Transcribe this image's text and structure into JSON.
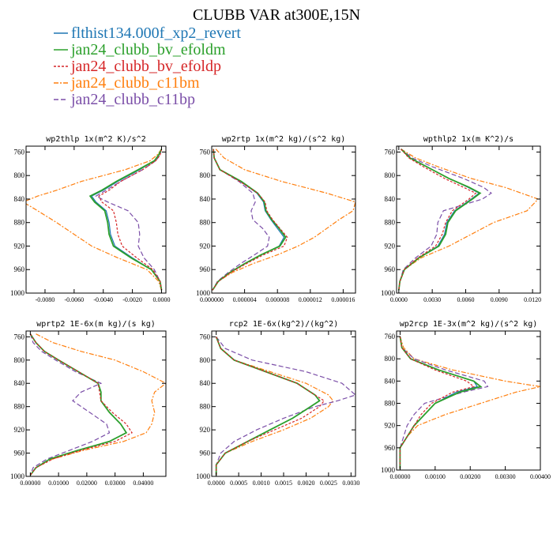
{
  "figure_title": "CLUBB VAR at300E,15N",
  "legend": [
    {
      "label": "flthist134.000f_xp2_revert",
      "color": "#1f77b4",
      "dash": ""
    },
    {
      "label": "jan24_clubb_bv_efoldm",
      "color": "#2ca02c",
      "dash": ""
    },
    {
      "label": "jan24_clubb_bv_efoldp",
      "color": "#d62728",
      "dash": "3,2"
    },
    {
      "label": "jan24_clubb_c11bm",
      "color": "#ff7f0e",
      "dash": "6,2,2,2"
    },
    {
      "label": "jan24_clubb_c11bp",
      "color": "#7b4fa8",
      "dash": "6,3"
    }
  ],
  "chart_data": [
    {
      "type": "line",
      "title": "wp2thlp  1x(m^2 K)/s^2",
      "xlim": [
        -0.0093,
        0.0003
      ],
      "ylim": [
        1000,
        750
      ],
      "yticks": [
        760,
        800,
        840,
        880,
        920,
        960,
        1000
      ],
      "xticks": [
        {
          "v": -0.008,
          "label": "-0.0080"
        },
        {
          "v": -0.006,
          "label": "-0.0060"
        },
        {
          "v": -0.004,
          "label": "-0.0040"
        },
        {
          "v": -0.002,
          "label": "-0.0020"
        },
        {
          "v": 0.0,
          "label": "0.0000"
        }
      ],
      "y": [
        755,
        765,
        775,
        790,
        810,
        825,
        835,
        845,
        860,
        880,
        900,
        920,
        940,
        960,
        980,
        995
      ],
      "series": [
        {
          "name": "flthist134.000f_xp2_revert",
          "values": [
            0.0,
            -0.0002,
            -0.0005,
            -0.0015,
            -0.003,
            -0.004,
            -0.0048,
            -0.0045,
            -0.0038,
            -0.0036,
            -0.0035,
            -0.0032,
            -0.002,
            -0.0007,
            -0.0001,
            0.0
          ]
        },
        {
          "name": "jan24_clubb_bv_efoldm",
          "values": [
            0.0,
            -0.0002,
            -0.0005,
            -0.0016,
            -0.0031,
            -0.0041,
            -0.0049,
            -0.0046,
            -0.0039,
            -0.0037,
            -0.0036,
            -0.0033,
            -0.0021,
            -0.0007,
            -0.0001,
            0.0
          ]
        },
        {
          "name": "jan24_clubb_bv_efoldp",
          "values": [
            0.0,
            -0.0001,
            -0.0004,
            -0.0013,
            -0.0028,
            -0.0036,
            -0.0043,
            -0.0041,
            -0.0033,
            -0.0031,
            -0.003,
            -0.0027,
            -0.0017,
            -0.0006,
            -0.0001,
            0.0
          ]
        },
        {
          "name": "jan24_clubb_c11bm",
          "values": [
            0.0,
            -0.0003,
            -0.0008,
            -0.0025,
            -0.0055,
            -0.0072,
            -0.0085,
            -0.0095,
            -0.0085,
            -0.0072,
            -0.006,
            -0.0048,
            -0.003,
            -0.001,
            -0.0002,
            0.0
          ]
        },
        {
          "name": "jan24_clubb_c11bp",
          "values": [
            0.0,
            -0.0001,
            -0.0004,
            -0.0013,
            -0.0028,
            -0.0038,
            -0.0045,
            -0.0037,
            -0.0023,
            -0.0016,
            -0.0015,
            -0.0016,
            -0.0012,
            -0.0005,
            -0.0001,
            0.0
          ]
        }
      ]
    },
    {
      "type": "line",
      "title": "wp2rtp  1x(m^2 kg)/(s^2 kg)",
      "xlim": [
        0,
        1.75e-05
      ],
      "ylim": [
        1000,
        750
      ],
      "yticks": [
        760,
        800,
        840,
        880,
        920,
        960,
        1000
      ],
      "xticks": [
        {
          "v": 0,
          "label": "0.000000"
        },
        {
          "v": 4e-06,
          "label": "0.000004"
        },
        {
          "v": 8e-06,
          "label": "0.000008"
        },
        {
          "v": 1.2e-05,
          "label": "0.000012"
        },
        {
          "v": 1.6e-05,
          "label": "0.000016"
        }
      ],
      "y": [
        755,
        770,
        790,
        810,
        830,
        845,
        860,
        875,
        890,
        905,
        920,
        935,
        950,
        965,
        980,
        995
      ],
      "series": [
        {
          "name": "flthist134.000f_xp2_revert",
          "values": [
            2e-07,
            3e-07,
            1e-06,
            3.5e-06,
            5.5e-06,
            6.3e-06,
            6.5e-06,
            7.2e-06,
            8e-06,
            8.8e-06,
            8.2e-06,
            6e-06,
            4e-06,
            2.2e-06,
            8e-07,
            1e-07
          ]
        },
        {
          "name": "jan24_clubb_bv_efoldm",
          "values": [
            2e-07,
            3e-07,
            1e-06,
            3.6e-06,
            5.6e-06,
            6.4e-06,
            6.6e-06,
            7.3e-06,
            8.2e-06,
            9e-06,
            8.3e-06,
            6e-06,
            4e-06,
            2.2e-06,
            8e-07,
            1e-07
          ]
        },
        {
          "name": "jan24_clubb_bv_efoldp",
          "values": [
            2e-07,
            3e-07,
            1e-06,
            3.4e-06,
            5.6e-06,
            6.5e-06,
            6.7e-06,
            7.4e-06,
            8.3e-06,
            9.2e-06,
            8.8e-06,
            6.3e-06,
            4.2e-06,
            2.3e-06,
            8e-07,
            1e-07
          ]
        },
        {
          "name": "jan24_clubb_c11bm",
          "values": [
            5e-07,
            1.5e-06,
            4e-06,
            8.5e-06,
            1.4e-05,
            1.75e-05,
            1.72e-05,
            1.55e-05,
            1.4e-05,
            1.25e-05,
            1.05e-05,
            8e-06,
            5e-06,
            2.5e-06,
            8e-07,
            1e-07
          ]
        },
        {
          "name": "jan24_clubb_c11bp",
          "values": [
            2e-07,
            3e-07,
            1e-06,
            3.3e-06,
            5e-06,
            5.3e-06,
            4.8e-06,
            5e-06,
            6.2e-06,
            7e-06,
            6.8e-06,
            5.2e-06,
            3.5e-06,
            2e-06,
            7e-07,
            1e-07
          ]
        }
      ]
    },
    {
      "type": "line",
      "title": "wpthlp2  1x(m K^2)/s",
      "xlim": [
        -0.0002,
        0.0127
      ],
      "ylim": [
        1000,
        750
      ],
      "yticks": [
        760,
        800,
        840,
        880,
        920,
        960,
        1000
      ],
      "xticks": [
        {
          "v": 0.0,
          "label": "0.0000"
        },
        {
          "v": 0.003,
          "label": "0.0030"
        },
        {
          "v": 0.006,
          "label": "0.0060"
        },
        {
          "v": 0.009,
          "label": "0.0090"
        },
        {
          "v": 0.012,
          "label": "0.0120"
        }
      ],
      "y": [
        755,
        770,
        785,
        805,
        820,
        830,
        840,
        860,
        880,
        900,
        920,
        940,
        960,
        980,
        995
      ],
      "series": [
        {
          "name": "flthist134.000f_xp2_revert",
          "values": [
            0.0002,
            0.001,
            0.0025,
            0.0045,
            0.0062,
            0.0072,
            0.0065,
            0.005,
            0.0043,
            0.0041,
            0.0035,
            0.0018,
            0.0005,
            0.0001,
            0.0
          ]
        },
        {
          "name": "jan24_clubb_bv_efoldm",
          "values": [
            0.0002,
            0.001,
            0.0025,
            0.0045,
            0.0063,
            0.0073,
            0.0066,
            0.0051,
            0.0044,
            0.0042,
            0.0036,
            0.0018,
            0.0005,
            0.0001,
            0.0
          ]
        },
        {
          "name": "jan24_clubb_bv_efoldp",
          "values": [
            0.0002,
            0.0009,
            0.0022,
            0.0041,
            0.0058,
            0.0069,
            0.0063,
            0.0048,
            0.0042,
            0.0039,
            0.0033,
            0.0017,
            0.0005,
            0.0001,
            0.0
          ]
        },
        {
          "name": "jan24_clubb_c11bm",
          "values": [
            0.0002,
            0.0015,
            0.0035,
            0.0065,
            0.0095,
            0.011,
            0.0125,
            0.0115,
            0.0085,
            0.0065,
            0.0045,
            0.002,
            0.0005,
            0.0001,
            0.0
          ]
        },
        {
          "name": "jan24_clubb_c11bp",
          "values": [
            0.0002,
            0.0012,
            0.003,
            0.0058,
            0.0076,
            0.0083,
            0.0075,
            0.004,
            0.0035,
            0.0034,
            0.0029,
            0.0015,
            0.0004,
            0.0001,
            0.0
          ]
        }
      ]
    },
    {
      "type": "line",
      "title": "wprtp2  1E-6x(m kg)/(s kg)",
      "xlim": [
        -0.0015,
        0.048
      ],
      "ylim": [
        1000,
        750
      ],
      "yticks": [
        760,
        800,
        840,
        880,
        920,
        960,
        1000
      ],
      "xticks": [
        {
          "v": 0.0,
          "label": "0.00000"
        },
        {
          "v": 0.01,
          "label": "0.01000"
        },
        {
          "v": 0.02,
          "label": "0.02000"
        },
        {
          "v": 0.03,
          "label": "0.03000"
        },
        {
          "v": 0.04,
          "label": "0.04000"
        }
      ],
      "y": [
        755,
        770,
        785,
        800,
        820,
        840,
        855,
        870,
        890,
        910,
        925,
        940,
        955,
        970,
        985,
        998
      ],
      "series": [
        {
          "name": "flthist134.000f_xp2_revert",
          "values": [
            0.0,
            0.002,
            0.005,
            0.01,
            0.017,
            0.024,
            0.025,
            0.025,
            0.028,
            0.032,
            0.034,
            0.028,
            0.017,
            0.007,
            0.002,
            0.0
          ]
        },
        {
          "name": "jan24_clubb_bv_efoldm",
          "values": [
            0.0,
            0.002,
            0.005,
            0.01,
            0.017,
            0.024,
            0.025,
            0.025,
            0.028,
            0.032,
            0.034,
            0.028,
            0.017,
            0.007,
            0.002,
            0.0
          ]
        },
        {
          "name": "jan24_clubb_bv_efoldp",
          "values": [
            0.0,
            0.002,
            0.005,
            0.01,
            0.017,
            0.024,
            0.0245,
            0.025,
            0.029,
            0.034,
            0.036,
            0.03,
            0.018,
            0.008,
            0.002,
            0.0
          ]
        },
        {
          "name": "jan24_clubb_c11bm",
          "values": [
            0.002,
            0.008,
            0.018,
            0.03,
            0.04,
            0.048,
            0.044,
            0.043,
            0.044,
            0.043,
            0.041,
            0.033,
            0.019,
            0.008,
            0.002,
            0.0
          ]
        },
        {
          "name": "jan24_clubb_c11bp",
          "values": [
            0.0,
            0.001,
            0.004,
            0.009,
            0.016,
            0.025,
            0.018,
            0.015,
            0.021,
            0.027,
            0.028,
            0.022,
            0.014,
            0.006,
            0.001,
            0.0
          ]
        }
      ]
    },
    {
      "type": "line",
      "title": "rcp2  1E-6x(kg^2)/(kg^2)",
      "xlim": [
        -0.0001,
        0.0031
      ],
      "ylim": [
        1000,
        750
      ],
      "yticks": [
        760,
        800,
        840,
        880,
        920,
        960,
        1000
      ],
      "xticks": [
        {
          "v": 0.0,
          "label": "0.0000"
        },
        {
          "v": 0.0005,
          "label": "0.0005"
        },
        {
          "v": 0.001,
          "label": "0.0010"
        },
        {
          "v": 0.0015,
          "label": "0.0015"
        },
        {
          "v": 0.002,
          "label": "0.0020"
        },
        {
          "v": 0.0025,
          "label": "0.0025"
        },
        {
          "v": 0.003,
          "label": "0.0030"
        }
      ],
      "y": [
        760,
        780,
        800,
        820,
        840,
        860,
        870,
        880,
        900,
        920,
        940,
        960,
        980,
        998
      ],
      "series": [
        {
          "name": "flthist134.000f_xp2_revert",
          "values": [
            0.0,
            0.0001,
            0.0004,
            0.0011,
            0.0018,
            0.0022,
            0.0023,
            0.0021,
            0.0017,
            0.0012,
            0.0007,
            0.0002,
            0.0,
            0.0
          ]
        },
        {
          "name": "jan24_clubb_bv_efoldm",
          "values": [
            0.0,
            0.0001,
            0.0004,
            0.0011,
            0.0018,
            0.0022,
            0.0023,
            0.0021,
            0.0017,
            0.0012,
            0.0007,
            0.0002,
            0.0,
            0.0
          ]
        },
        {
          "name": "jan24_clubb_bv_efoldp",
          "values": [
            0.0,
            0.0001,
            0.0004,
            0.0011,
            0.0018,
            0.0022,
            0.0024,
            0.0023,
            0.0019,
            0.0013,
            0.0007,
            0.0002,
            0.0,
            0.0
          ]
        },
        {
          "name": "jan24_clubb_c11bm",
          "values": [
            0.0,
            0.0001,
            0.0004,
            0.0012,
            0.002,
            0.0025,
            0.0026,
            0.0025,
            0.0021,
            0.0015,
            0.0008,
            0.0002,
            0.0,
            0.0
          ]
        },
        {
          "name": "jan24_clubb_c11bp",
          "values": [
            0.0,
            0.0002,
            0.0008,
            0.002,
            0.0028,
            0.0031,
            0.0027,
            0.0022,
            0.0015,
            0.0009,
            0.0004,
            0.0001,
            0.0,
            0.0
          ]
        }
      ]
    },
    {
      "type": "line",
      "title": "wp2rcp  1E-3x(m^2 kg)/(s^2 kg)",
      "xlim": [
        -0.0001,
        0.004
      ],
      "ylim": [
        1000,
        750
      ],
      "yticks": [
        760,
        800,
        840,
        880,
        920,
        960,
        1000
      ],
      "xticks": [
        {
          "v": 0.0,
          "label": "0.00000"
        },
        {
          "v": 0.001,
          "label": "0.00100"
        },
        {
          "v": 0.002,
          "label": "0.00200"
        },
        {
          "v": 0.003,
          "label": "0.00300"
        },
        {
          "v": 0.004,
          "label": "0.00400"
        }
      ],
      "y": [
        760,
        780,
        800,
        820,
        840,
        850,
        860,
        880,
        900,
        920,
        940,
        960,
        980,
        998
      ],
      "series": [
        {
          "name": "flthist134.000f_xp2_revert",
          "values": [
            0.0,
            5e-05,
            0.0003,
            0.0011,
            0.0021,
            0.0022,
            0.0016,
            0.001,
            0.0007,
            0.0004,
            0.0002,
            0.0,
            0.0,
            0.0
          ]
        },
        {
          "name": "jan24_clubb_bv_efoldm",
          "values": [
            0.0,
            5e-05,
            0.0003,
            0.0011,
            0.0021,
            0.0023,
            0.0017,
            0.001,
            0.0007,
            0.0004,
            0.0002,
            0.0,
            0.0,
            0.0
          ]
        },
        {
          "name": "jan24_clubb_bv_efoldp",
          "values": [
            0.0,
            5e-05,
            0.0003,
            0.001,
            0.0019,
            0.0021,
            0.0015,
            0.0009,
            0.0006,
            0.0004,
            0.0002,
            0.0,
            0.0,
            0.0
          ]
        },
        {
          "name": "jan24_clubb_c11bm",
          "values": [
            0.0,
            0.0001,
            0.0004,
            0.0015,
            0.003,
            0.004,
            0.0033,
            0.0023,
            0.0013,
            0.0005,
            0.0002,
            0.0,
            0.0,
            0.0
          ]
        },
        {
          "name": "jan24_clubb_c11bp",
          "values": [
            0.0,
            5e-05,
            0.0004,
            0.0013,
            0.0024,
            0.0025,
            0.0018,
            0.0007,
            0.0004,
            0.0002,
            0.0001,
            0.0,
            0.0,
            0.0
          ]
        }
      ]
    }
  ]
}
